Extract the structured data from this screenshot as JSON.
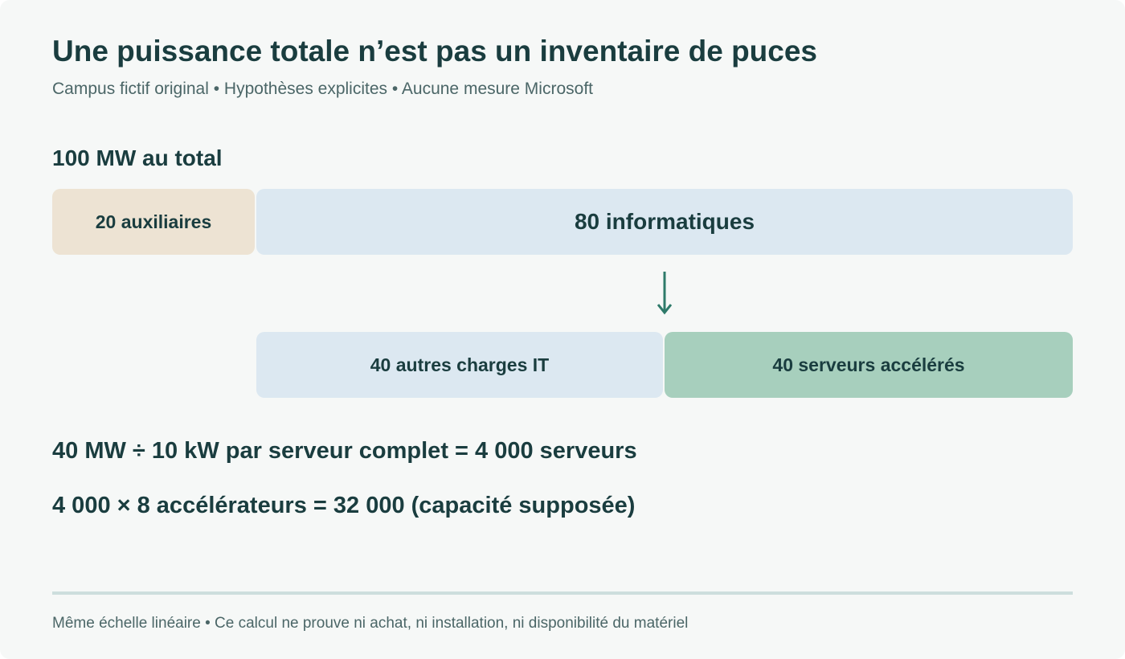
{
  "header": {
    "title": "Une puissance totale n’est pas un inventaire de puces",
    "subtitle": "Campus fictif original • Hypothèses explicites • Aucune mesure Microsoft"
  },
  "diagram": {
    "total_label": "100 MW au total",
    "top_row": [
      {
        "label": "20 auxiliaires",
        "value_mw": 20,
        "color": "#ede3d3"
      },
      {
        "label": "80 informatiques",
        "value_mw": 80,
        "color": "#dce8f1"
      }
    ],
    "bottom_row": [
      {
        "label": "40 autres charges IT",
        "value_mw": 40,
        "color": "#dce8f1"
      },
      {
        "label": "40 serveurs accélérés",
        "value_mw": 40,
        "color": "#a7cfbd"
      }
    ],
    "arrow_color": "#2e7a6a"
  },
  "calculations": {
    "line1": "40 MW ÷ 10 kW par serveur complet = 4 000 serveurs",
    "line2": "4 000 × 8 accélérateurs = 32 000 (capacité supposée)"
  },
  "footer": {
    "note": "Même échelle linéaire • Ce calcul ne prouve ni achat, ni installation, ni disponibilité du matériel"
  },
  "colors": {
    "background": "#f6f8f7",
    "text": "#1a3d3f",
    "muted_text": "#4b6667",
    "divider": "#cddedd"
  }
}
